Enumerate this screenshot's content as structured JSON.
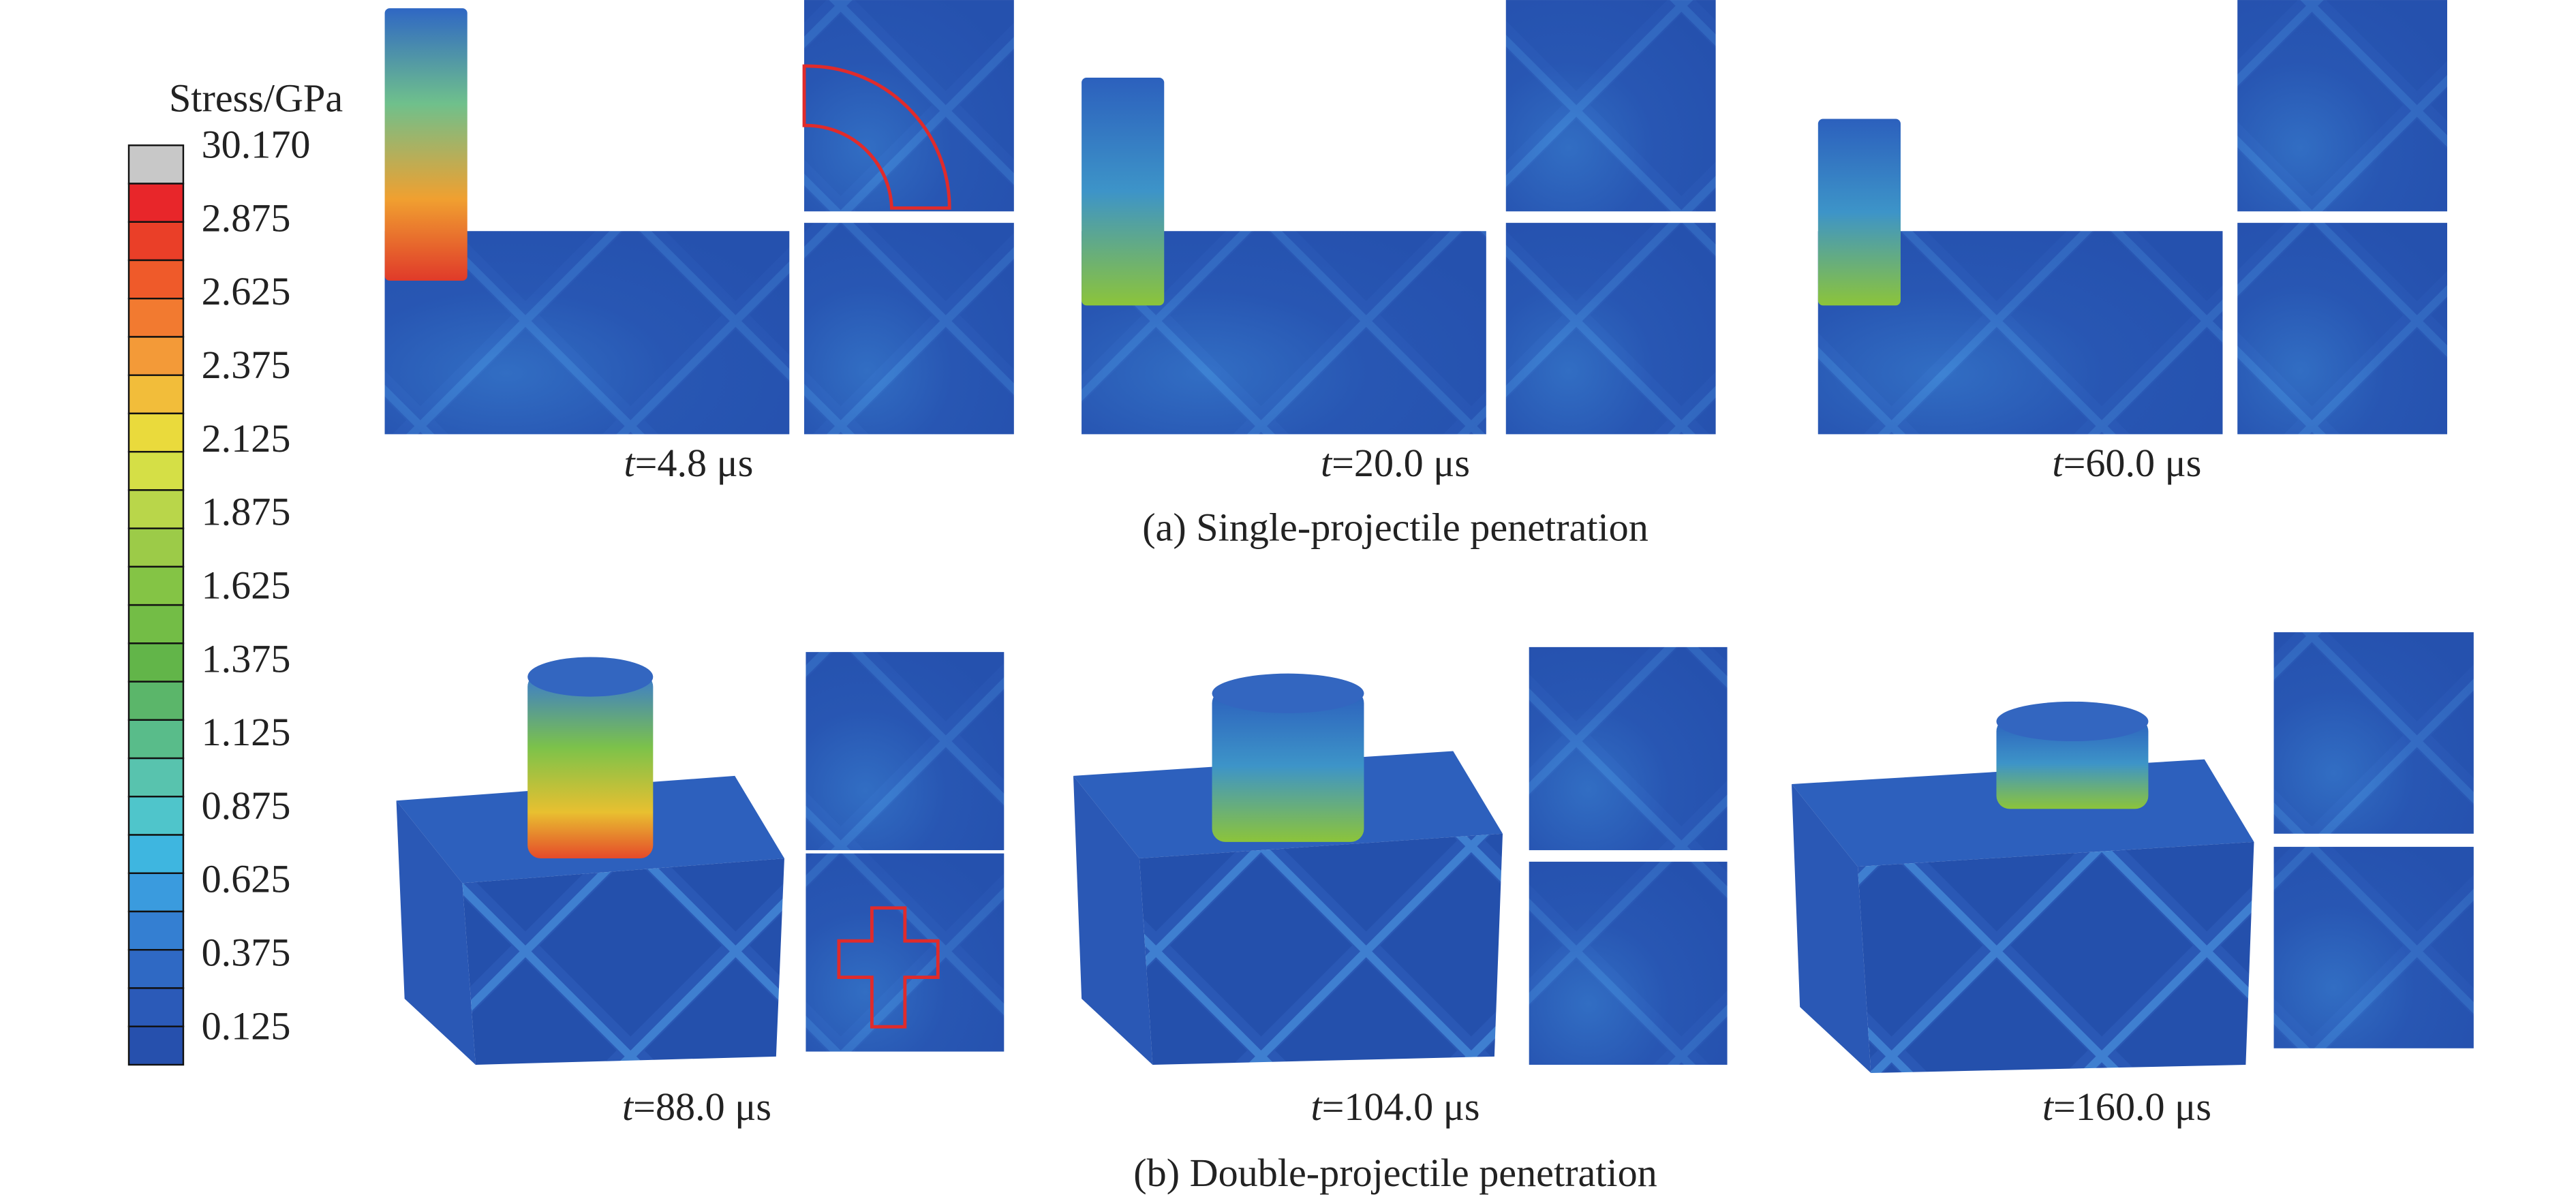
{
  "colorbar": {
    "title": "Stress/GPa",
    "labels": [
      "30.170",
      "2.875",
      "2.625",
      "2.375",
      "2.125",
      "1.875",
      "1.625",
      "1.375",
      "1.125",
      "0.875",
      "0.625",
      "0.375",
      "0.125"
    ]
  },
  "rows": [
    {
      "caption": "(a) Single-projectile penetration",
      "panels": [
        {
          "t": "t",
          "time": "=4.8 μs"
        },
        {
          "t": "t",
          "time": "=20.0 μs"
        },
        {
          "t": "t",
          "time": "=60.0 μs"
        }
      ]
    },
    {
      "caption": "(b) Double-projectile penetration",
      "panels": [
        {
          "t": "t",
          "time": "=88.0 μs"
        },
        {
          "t": "t",
          "time": "=104.0 μs"
        },
        {
          "t": "t",
          "time": "=160.0 μs"
        }
      ]
    }
  ]
}
